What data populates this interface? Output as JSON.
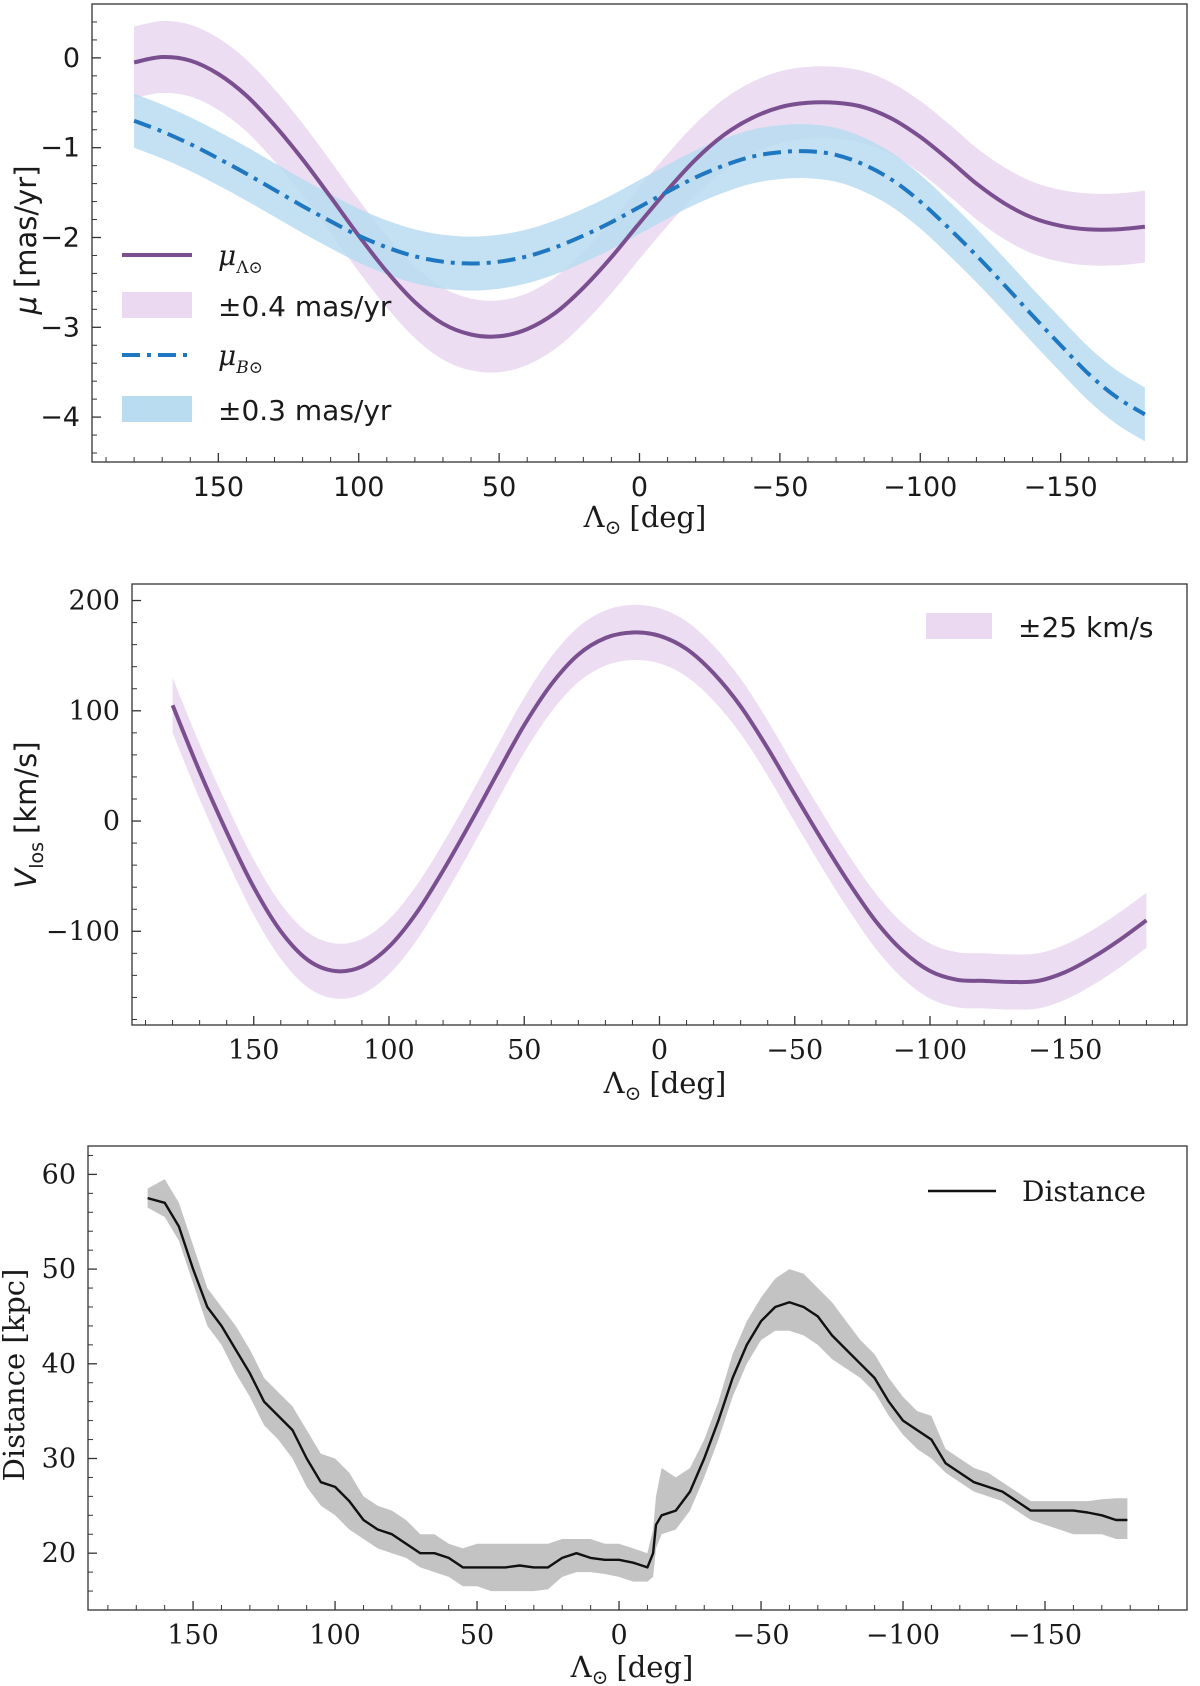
{
  "colors": {
    "purple": "#7a4f8f",
    "purple_band": "#ead9f1",
    "blue": "#1f77c1",
    "blue_band": "#b9dcf0",
    "black": "#111111",
    "gray_band": "#bdbdbd"
  },
  "chart_data": [
    {
      "type": "line",
      "title": "",
      "xlabel_main": "Λ",
      "xlabel_sub": "⊙",
      "xlabel_unit": "[deg]",
      "ylabel_main": "μ",
      "ylabel_unit": "[mas/yr]",
      "xlim": [
        195,
        -195
      ],
      "ylim": [
        -4.5,
        0.6
      ],
      "xticks": [
        150,
        100,
        50,
        0,
        -50,
        -100,
        -150
      ],
      "xtick_labels": [
        "150",
        "100",
        "50",
        "0",
        "−50",
        "−100",
        "−150"
      ],
      "yticks": [
        0,
        -1,
        -2,
        -3,
        -4
      ],
      "ytick_labels": [
        "0",
        "−1",
        "−2",
        "−3",
        "−4"
      ],
      "series": [
        {
          "name": "μΛ⊙",
          "legend_main": "μ",
          "legend_sub": "Λ⊙",
          "style": "solid",
          "x": [
            180,
            170,
            160,
            150,
            140,
            130,
            120,
            110,
            100,
            90,
            80,
            70,
            60,
            50,
            40,
            30,
            20,
            10,
            0,
            -10,
            -20,
            -30,
            -40,
            -50,
            -60,
            -70,
            -80,
            -90,
            -100,
            -110,
            -120,
            -130,
            -140,
            -150,
            -160,
            -170,
            -180
          ],
          "y": [
            -0.05,
            0.01,
            -0.03,
            -0.18,
            -0.42,
            -0.75,
            -1.13,
            -1.55,
            -1.98,
            -2.38,
            -2.72,
            -2.96,
            -3.08,
            -3.1,
            -3.02,
            -2.84,
            -2.56,
            -2.22,
            -1.84,
            -1.47,
            -1.13,
            -0.86,
            -0.67,
            -0.55,
            -0.5,
            -0.5,
            -0.55,
            -0.68,
            -0.88,
            -1.13,
            -1.4,
            -1.62,
            -1.78,
            -1.87,
            -1.91,
            -1.91,
            -1.88
          ],
          "band": 0.4,
          "band_name": "±0.4 mas/yr"
        },
        {
          "name": "μB⊙",
          "legend_main": "μ",
          "legend_sub": "B⊙",
          "style": "dashdot",
          "x": [
            180,
            170,
            160,
            150,
            140,
            130,
            120,
            110,
            100,
            90,
            80,
            70,
            60,
            50,
            40,
            30,
            20,
            10,
            0,
            -10,
            -20,
            -30,
            -40,
            -50,
            -60,
            -70,
            -80,
            -90,
            -100,
            -110,
            -120,
            -130,
            -140,
            -150,
            -160,
            -170,
            -180
          ],
          "y": [
            -0.7,
            -0.82,
            -0.96,
            -1.12,
            -1.29,
            -1.47,
            -1.65,
            -1.82,
            -1.98,
            -2.11,
            -2.21,
            -2.27,
            -2.29,
            -2.27,
            -2.21,
            -2.11,
            -1.98,
            -1.83,
            -1.66,
            -1.49,
            -1.33,
            -1.2,
            -1.1,
            -1.05,
            -1.04,
            -1.08,
            -1.19,
            -1.36,
            -1.6,
            -1.89,
            -2.2,
            -2.53,
            -2.87,
            -3.2,
            -3.52,
            -3.78,
            -3.97
          ],
          "band": 0.3,
          "band_name": "±0.3 mas/yr"
        }
      ],
      "legend_location": "left",
      "legend_entries": [
        "μΛ⊙",
        "±0.4 mas/yr",
        "μB⊙",
        "±0.3 mas/yr"
      ]
    },
    {
      "type": "line",
      "xlabel_main": "Λ",
      "xlabel_sub": "⊙",
      "xlabel_unit": "[deg]",
      "ylabel_main": "V",
      "ylabel_sub": "los",
      "ylabel_unit": "[km/s]",
      "xlim": [
        195,
        -195
      ],
      "ylim": [
        -185,
        215
      ],
      "xticks": [
        150,
        100,
        50,
        0,
        -50,
        -100,
        -150
      ],
      "xtick_labels": [
        "150",
        "100",
        "50",
        "0",
        "−50",
        "−100",
        "−150"
      ],
      "yticks": [
        200,
        100,
        0,
        -100
      ],
      "ytick_labels": [
        "200",
        "100",
        "0",
        "−100"
      ],
      "series": [
        {
          "name": "Vlos",
          "style": "solid",
          "x": [
            180,
            170,
            160,
            150,
            140,
            130,
            120,
            110,
            100,
            90,
            80,
            70,
            60,
            50,
            40,
            30,
            20,
            10,
            0,
            -10,
            -20,
            -30,
            -40,
            -50,
            -60,
            -70,
            -80,
            -90,
            -100,
            -110,
            -120,
            -130,
            -140,
            -150,
            -160,
            -170,
            -180
          ],
          "y": [
            105,
            45,
            -10,
            -60,
            -100,
            -126,
            -136,
            -132,
            -114,
            -84,
            -45,
            -2,
            43,
            87,
            124,
            151,
            166,
            171,
            168,
            156,
            134,
            104,
            66,
            24,
            -17,
            -56,
            -91,
            -118,
            -136,
            -144,
            -145,
            -146,
            -145,
            -137,
            -124,
            -108,
            -90
          ],
          "band": 25,
          "band_name": "±25 km/s"
        }
      ],
      "legend_location": "top-right",
      "legend_entries": [
        "±25 km/s"
      ]
    },
    {
      "type": "line",
      "xlabel_main": "Λ",
      "xlabel_sub": "⊙",
      "xlabel_unit": "[deg]",
      "ylabel": "Distance [kpc]",
      "xlim": [
        187,
        -200
      ],
      "ylim": [
        14,
        63
      ],
      "xticks": [
        150,
        100,
        50,
        0,
        -50,
        -100,
        -150
      ],
      "xtick_labels": [
        "150",
        "100",
        "50",
        "0",
        "−50",
        "−100",
        "−150"
      ],
      "yticks": [
        60,
        50,
        40,
        30,
        20
      ],
      "ytick_labels": [
        "60",
        "50",
        "40",
        "30",
        "20"
      ],
      "series": [
        {
          "name": "Distance",
          "style": "solid",
          "x": [
            166,
            160,
            155,
            150,
            145,
            140,
            135,
            130,
            125,
            120,
            115,
            110,
            105,
            100,
            95,
            90,
            85,
            80,
            75,
            70,
            65,
            60,
            55,
            50,
            45,
            40,
            35,
            30,
            25,
            20,
            15,
            10,
            5,
            0,
            -5,
            -10,
            -12,
            -13,
            -15,
            -20,
            -25,
            -30,
            -35,
            -40,
            -45,
            -50,
            -55,
            -60,
            -65,
            -70,
            -75,
            -80,
            -85,
            -90,
            -95,
            -100,
            -105,
            -110,
            -115,
            -120,
            -125,
            -130,
            -135,
            -140,
            -145,
            -150,
            -155,
            -160,
            -165,
            -170,
            -175,
            -179
          ],
          "y": [
            57.5,
            57.0,
            54.5,
            50.0,
            46.0,
            44.0,
            41.5,
            39.0,
            36.0,
            34.5,
            33.0,
            30.0,
            27.5,
            27.0,
            25.5,
            23.5,
            22.5,
            22.0,
            21.0,
            20.0,
            20.0,
            19.5,
            18.5,
            18.5,
            18.5,
            18.5,
            18.7,
            18.5,
            18.5,
            19.5,
            20.0,
            19.5,
            19.3,
            19.3,
            19.0,
            18.5,
            20.0,
            23.0,
            24.0,
            24.5,
            26.5,
            30.0,
            34.0,
            38.5,
            42.0,
            44.5,
            46.0,
            46.5,
            46.0,
            45.0,
            43.0,
            41.5,
            40.0,
            38.5,
            36.0,
            34.0,
            33.0,
            32.0,
            29.5,
            28.5,
            27.5,
            27.0,
            26.5,
            25.5,
            24.5,
            24.5,
            24.5,
            24.5,
            24.3,
            24.0,
            23.5,
            23.5
          ],
          "band_lower": [
            56.5,
            55.5,
            53.0,
            48.5,
            44.0,
            42.0,
            39.0,
            36.5,
            33.5,
            32.0,
            30.0,
            27.0,
            25.0,
            24.0,
            22.5,
            21.5,
            20.5,
            20.0,
            19.5,
            18.5,
            18.0,
            17.5,
            16.5,
            16.5,
            16.0,
            16.0,
            16.0,
            16.0,
            16.2,
            17.5,
            18.0,
            18.0,
            17.8,
            17.5,
            17.0,
            17.0,
            17.5,
            20.5,
            22.0,
            22.5,
            24.5,
            28.0,
            32.0,
            36.5,
            40.0,
            42.5,
            43.5,
            43.5,
            43.0,
            42.0,
            40.5,
            39.5,
            38.5,
            37.0,
            34.5,
            32.5,
            31.0,
            30.0,
            28.5,
            27.5,
            26.5,
            26.0,
            25.5,
            24.5,
            23.5,
            23.0,
            22.5,
            22.0,
            22.0,
            22.0,
            21.5,
            21.5
          ],
          "band_upper": [
            58.5,
            59.5,
            57.0,
            52.5,
            48.0,
            46.0,
            44.0,
            41.5,
            38.5,
            37.0,
            35.5,
            33.0,
            30.5,
            30.0,
            28.5,
            26.0,
            25.0,
            24.5,
            23.5,
            22.0,
            22.0,
            21.0,
            20.5,
            21.0,
            21.0,
            21.0,
            21.0,
            21.0,
            21.0,
            21.5,
            21.5,
            21.5,
            21.0,
            21.0,
            20.5,
            20.0,
            22.5,
            26.0,
            29.0,
            28.0,
            29.0,
            32.0,
            36.0,
            41.0,
            44.5,
            47.0,
            49.0,
            50.0,
            49.5,
            48.0,
            46.5,
            44.5,
            42.5,
            41.0,
            38.5,
            36.5,
            35.0,
            34.5,
            31.0,
            30.0,
            29.0,
            28.5,
            27.5,
            26.5,
            25.5,
            25.5,
            25.5,
            25.5,
            25.5,
            25.7,
            25.8,
            25.8
          ]
        }
      ],
      "legend_location": "top-right",
      "legend_entries": [
        "Distance"
      ]
    }
  ]
}
